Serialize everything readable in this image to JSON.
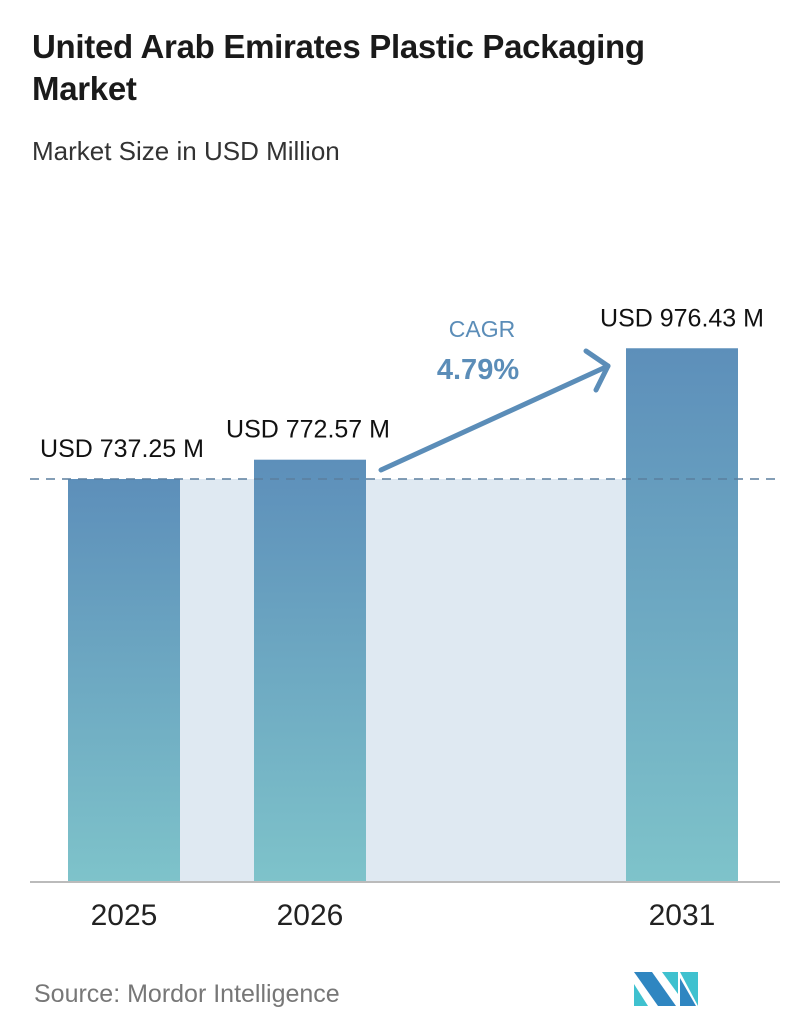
{
  "title": "United Arab Emirates Plastic Packaging Market",
  "subtitle": "Market Size in USD Million",
  "source": "Source:  Mordor Intelligence",
  "colors": {
    "bar_top": "#5d8fba",
    "bar_bottom": "#7ec3ca",
    "shade": "#dfe9f2",
    "cagr": "#5b8db8",
    "dash": "#5b7f9e"
  },
  "chart_data": {
    "type": "bar",
    "categories": [
      "2025",
      "2026",
      "2031"
    ],
    "values": [
      737.25,
      772.57,
      976.43
    ],
    "data_labels": [
      "USD 737.25 M",
      "USD 772.57 M",
      "USD 976.43 M"
    ],
    "annotation": {
      "label": "CAGR",
      "value": "4.79%"
    },
    "xlabel": "",
    "ylabel": "",
    "grid": false
  },
  "logo": {
    "text": "Mordor Intelligence",
    "colors": [
      "#2f86c1",
      "#3fc1cf"
    ]
  }
}
